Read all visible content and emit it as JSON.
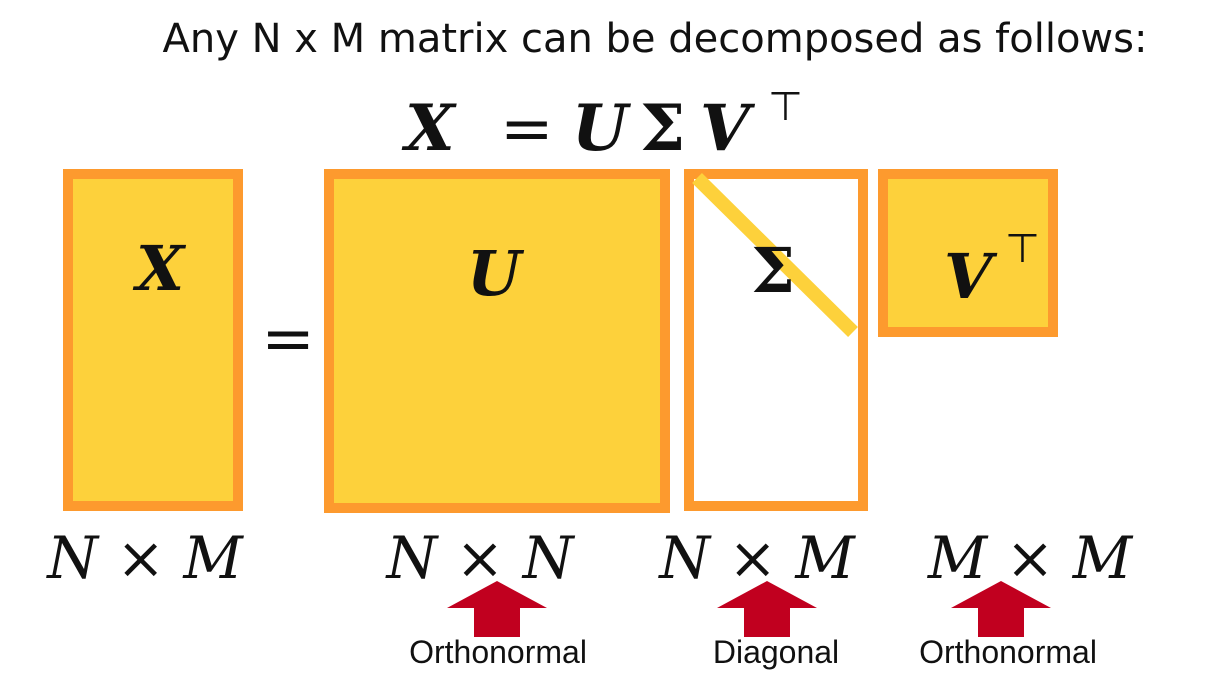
{
  "title": "Any N x M matrix can be decomposed as follows:",
  "equation": {
    "lhs": "X",
    "equals": "=",
    "rhs_u": "U",
    "rhs_sigma": "Σ",
    "rhs_v": "V",
    "rhs_transpose": "⊤"
  },
  "matrices": {
    "x": {
      "symbol": "X",
      "dims": "N × M"
    },
    "equals": "=",
    "u": {
      "symbol": "U",
      "dims": "N × N",
      "property": "Orthonormal"
    },
    "sigma": {
      "symbol": "Σ",
      "dims": "N × M",
      "property": "Diagonal"
    },
    "vt": {
      "symbol": "V",
      "transpose": "⊤",
      "dims": "M × M",
      "property": "Orthonormal"
    }
  },
  "colors": {
    "fill": "#fdd13b",
    "border": "#fd9a2e",
    "diagonal": "#fdd13b",
    "arrow": "#c1001f"
  }
}
